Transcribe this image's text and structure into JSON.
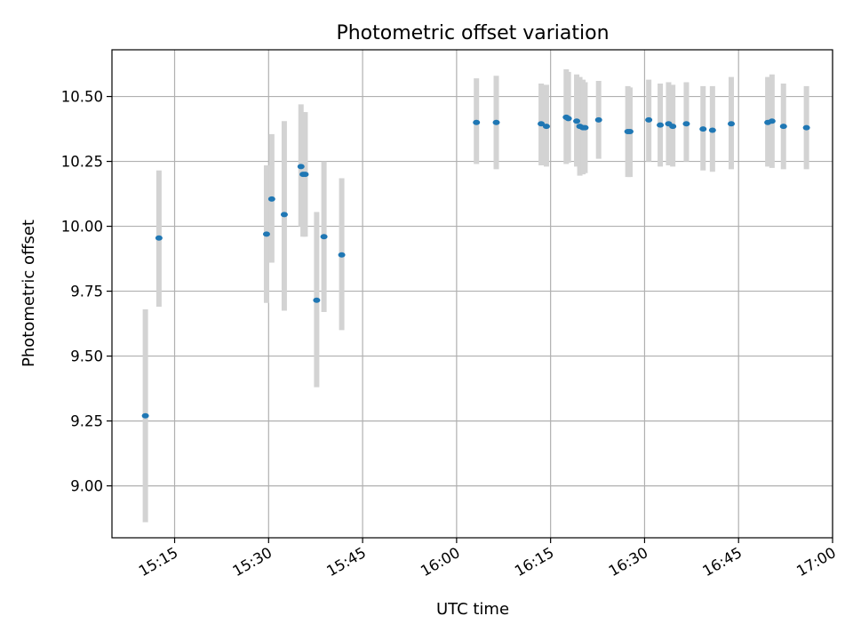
{
  "chart_data": {
    "type": "scatter",
    "title": "Photometric offset variation",
    "xlabel": "UTC time",
    "ylabel": "Photometric offset",
    "xlim": [
      "15:05",
      "17:00"
    ],
    "ylim": [
      8.8,
      10.68
    ],
    "x_ticks": [
      "15:15",
      "15:30",
      "15:45",
      "16:00",
      "16:15",
      "16:30",
      "16:45",
      "17:00"
    ],
    "y_ticks": [
      9.0,
      9.25,
      9.5,
      9.75,
      10.0,
      10.25,
      10.5
    ],
    "y_tick_labels": [
      "9.00",
      "9.25",
      "9.50",
      "9.75",
      "10.00",
      "10.25",
      "10.50"
    ],
    "grid": true,
    "marker_color": "#1f77b4",
    "errorbar_color": "#d3d3d3",
    "points": [
      {
        "time": "15:10:20",
        "y": 9.27,
        "err_low": 8.86,
        "err_high": 9.68
      },
      {
        "time": "15:12:30",
        "y": 9.955,
        "err_low": 9.69,
        "err_high": 10.215
      },
      {
        "time": "15:29:40",
        "y": 9.97,
        "err_low": 9.705,
        "err_high": 10.235
      },
      {
        "time": "15:30:30",
        "y": 10.105,
        "err_low": 9.86,
        "err_high": 10.355
      },
      {
        "time": "15:32:30",
        "y": 10.045,
        "err_low": 9.675,
        "err_high": 10.405
      },
      {
        "time": "15:35:10",
        "y": 10.23,
        "err_low": 10.0,
        "err_high": 10.47
      },
      {
        "time": "15:35:30",
        "y": 10.2,
        "err_low": 9.96,
        "err_high": 10.44
      },
      {
        "time": "15:35:50",
        "y": 10.2,
        "err_low": 9.96,
        "err_high": 10.44
      },
      {
        "time": "15:37:40",
        "y": 9.715,
        "err_low": 9.38,
        "err_high": 10.055
      },
      {
        "time": "15:38:50",
        "y": 9.96,
        "err_low": 9.67,
        "err_high": 10.25
      },
      {
        "time": "15:41:40",
        "y": 9.89,
        "err_low": 9.6,
        "err_high": 10.185
      },
      {
        "time": "16:03:10",
        "y": 10.4,
        "err_low": 10.24,
        "err_high": 10.57
      },
      {
        "time": "16:06:20",
        "y": 10.4,
        "err_low": 10.22,
        "err_high": 10.58
      },
      {
        "time": "16:13:30",
        "y": 10.395,
        "err_low": 10.235,
        "err_high": 10.55
      },
      {
        "time": "16:14:20",
        "y": 10.385,
        "err_low": 10.23,
        "err_high": 10.545
      },
      {
        "time": "16:17:30",
        "y": 10.42,
        "err_low": 10.24,
        "err_high": 10.605
      },
      {
        "time": "16:17:50",
        "y": 10.415,
        "err_low": 10.245,
        "err_high": 10.595
      },
      {
        "time": "16:19:10",
        "y": 10.405,
        "err_low": 10.23,
        "err_high": 10.585
      },
      {
        "time": "16:19:40",
        "y": 10.385,
        "err_low": 10.195,
        "err_high": 10.575
      },
      {
        "time": "16:20:10",
        "y": 10.38,
        "err_low": 10.2,
        "err_high": 10.565
      },
      {
        "time": "16:20:30",
        "y": 10.38,
        "err_low": 10.205,
        "err_high": 10.555
      },
      {
        "time": "16:22:40",
        "y": 10.41,
        "err_low": 10.26,
        "err_high": 10.56
      },
      {
        "time": "16:27:20",
        "y": 10.365,
        "err_low": 10.19,
        "err_high": 10.54
      },
      {
        "time": "16:27:40",
        "y": 10.365,
        "err_low": 10.19,
        "err_high": 10.535
      },
      {
        "time": "16:30:40",
        "y": 10.41,
        "err_low": 10.25,
        "err_high": 10.565
      },
      {
        "time": "16:32:30",
        "y": 10.39,
        "err_low": 10.23,
        "err_high": 10.55
      },
      {
        "time": "16:33:50",
        "y": 10.395,
        "err_low": 10.235,
        "err_high": 10.555
      },
      {
        "time": "16:34:30",
        "y": 10.385,
        "err_low": 10.23,
        "err_high": 10.545
      },
      {
        "time": "16:36:40",
        "y": 10.395,
        "err_low": 10.25,
        "err_high": 10.555
      },
      {
        "time": "16:39:20",
        "y": 10.375,
        "err_low": 10.215,
        "err_high": 10.54
      },
      {
        "time": "16:40:50",
        "y": 10.37,
        "err_low": 10.21,
        "err_high": 10.54
      },
      {
        "time": "16:43:50",
        "y": 10.395,
        "err_low": 10.22,
        "err_high": 10.575
      },
      {
        "time": "16:49:40",
        "y": 10.4,
        "err_low": 10.23,
        "err_high": 10.575
      },
      {
        "time": "16:50:20",
        "y": 10.405,
        "err_low": 10.225,
        "err_high": 10.585
      },
      {
        "time": "16:52:10",
        "y": 10.385,
        "err_low": 10.22,
        "err_high": 10.55
      },
      {
        "time": "16:55:50",
        "y": 10.38,
        "err_low": 10.22,
        "err_high": 10.54
      }
    ]
  }
}
